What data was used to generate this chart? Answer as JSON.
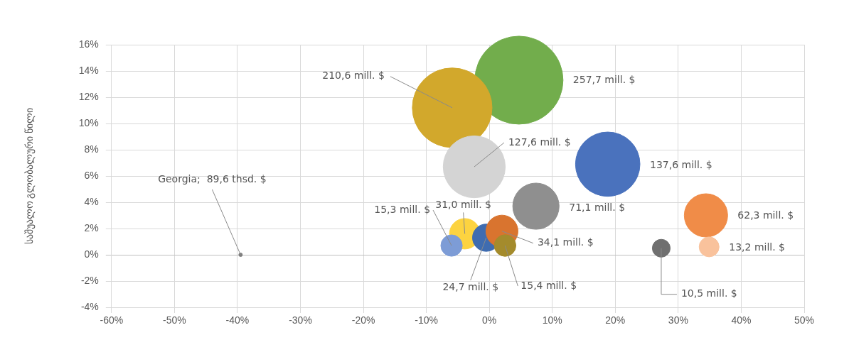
{
  "chart_data": {
    "type": "bubble",
    "ylabel": "საშუალო გლობალური წილი",
    "x": [
      4.7,
      -5.9,
      -2.4,
      18.8,
      7.4,
      34.4,
      34.9,
      27.3,
      -3.9,
      -6.0,
      -0.5,
      2.0,
      2.5,
      -39.5
    ],
    "values": [
      13.3,
      11.2,
      6.7,
      6.9,
      3.7,
      3.0,
      0.6,
      0.5,
      1.6,
      0.7,
      1.3,
      1.8,
      0.7,
      0
    ],
    "sizes": [
      1,
      0.817,
      0.495,
      0.534,
      0.276,
      0.242,
      0.051,
      0.041,
      0.12,
      0.059,
      0.096,
      0.132,
      0.06,
      null
    ],
    "colors": [
      "#72ad4c",
      "#d2a82c",
      "#d4d4d4",
      "#4a72bd",
      "#8f8f8f",
      "#f08c48",
      "#f9c29c",
      "#6f6f6f",
      "#fcd340",
      "#7d9cd6",
      "#3f6cb0",
      "#d9742f",
      "#a48b2c",
      "#7f7f7f"
    ],
    "annotations": [
      "257,7 mill. $",
      {
        "text": "210,6 mill. $",
        "x": -5.9,
        "y": 11.2
      },
      {
        "text": "127,6 mill. $",
        "x": -2.4,
        "y": 6.7
      },
      "137,6 mill. $",
      "71,1 mill. $",
      "62,3 mill. $",
      {
        "text": "13,2 mill. $",
        "x": 34.9,
        "y": 0.6
      },
      {
        "text": "10,5 mill. $",
        "x": 27.3,
        "y": 0.5
      },
      {
        "text": "31,0 mill. $",
        "x": -3.9,
        "y": 1.6
      },
      {
        "text": "15,3 mill. $",
        "x": -6.0,
        "y": 0.7
      },
      {
        "text": "24,7 mill. $",
        "x": -0.5,
        "y": 1.3
      },
      {
        "text": "34,1 mill. $",
        "x": 2.0,
        "y": 1.8
      },
      {
        "text": "15,4 mill. $",
        "x": 2.5,
        "y": 0.7
      },
      {
        "text": "Georgia;  89,6 thsd. $",
        "x": -39.5,
        "y": 0
      }
    ],
    "xlim": [
      -60,
      50
    ],
    "xticks": [
      {
        "value": -60,
        "label": "-60%"
      },
      {
        "value": -50,
        "label": "-50%"
      },
      {
        "value": -40,
        "label": "-40%"
      },
      {
        "value": -30,
        "label": "-30%"
      },
      {
        "value": -20,
        "label": "-20%"
      },
      {
        "value": -10,
        "label": "-10%"
      },
      {
        "value": 0,
        "label": "0%"
      },
      {
        "value": 10,
        "label": "10%"
      },
      {
        "value": 20,
        "label": "20%"
      },
      {
        "value": 30,
        "label": "30%"
      },
      {
        "value": 40,
        "label": "40%"
      },
      {
        "value": 50,
        "label": "50%"
      }
    ],
    "ylim": [
      -4,
      16
    ],
    "yticks": [
      {
        "value": -4,
        "label": "-4%"
      },
      {
        "value": -2,
        "label": "-2%"
      },
      {
        "value": 0,
        "label": "0%"
      },
      {
        "value": 2,
        "label": "2%"
      },
      {
        "value": 4,
        "label": "4%"
      },
      {
        "value": 6,
        "label": "6%"
      },
      {
        "value": 8,
        "label": "8%"
      },
      {
        "value": 10,
        "label": "10%"
      },
      {
        "value": 12,
        "label": "12%"
      },
      {
        "value": 14,
        "label": "14%"
      },
      {
        "value": 16,
        "label": "16%"
      }
    ],
    "grid": true,
    "legend": false
  }
}
